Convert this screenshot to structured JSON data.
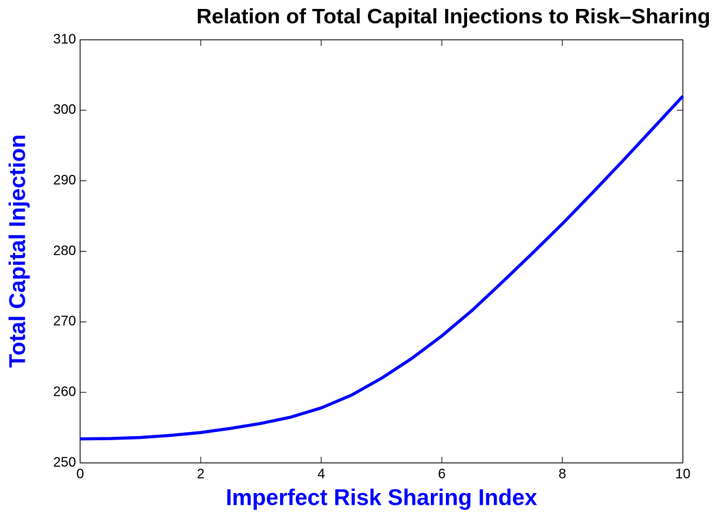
{
  "chart_data": {
    "type": "line",
    "title": "Relation of Total Capital Injections to Risk–Sharing",
    "x_label": "Imperfect Risk Sharing Index",
    "y_label": "Total Capital Injection",
    "x": [
      0,
      0.5,
      1,
      1.5,
      2,
      2.5,
      3,
      3.5,
      4,
      4.5,
      5,
      5.5,
      6,
      6.5,
      7,
      7.5,
      8,
      8.5,
      9,
      9.5,
      10
    ],
    "series": [
      {
        "color": "#0000ff",
        "values": [
          253.4,
          253.45,
          253.6,
          253.9,
          254.3,
          254.9,
          255.6,
          256.5,
          257.8,
          259.6,
          262.0,
          264.8,
          268.0,
          271.6,
          275.6,
          279.7,
          283.9,
          288.3,
          292.8,
          297.4,
          302.0
        ]
      }
    ],
    "xlim": [
      0,
      10
    ],
    "xticks": [
      0,
      2,
      4,
      6,
      8,
      10
    ],
    "ylim": [
      250,
      310
    ],
    "yticks": [
      250,
      260,
      270,
      280,
      290,
      300,
      310
    ],
    "grid": false
  }
}
